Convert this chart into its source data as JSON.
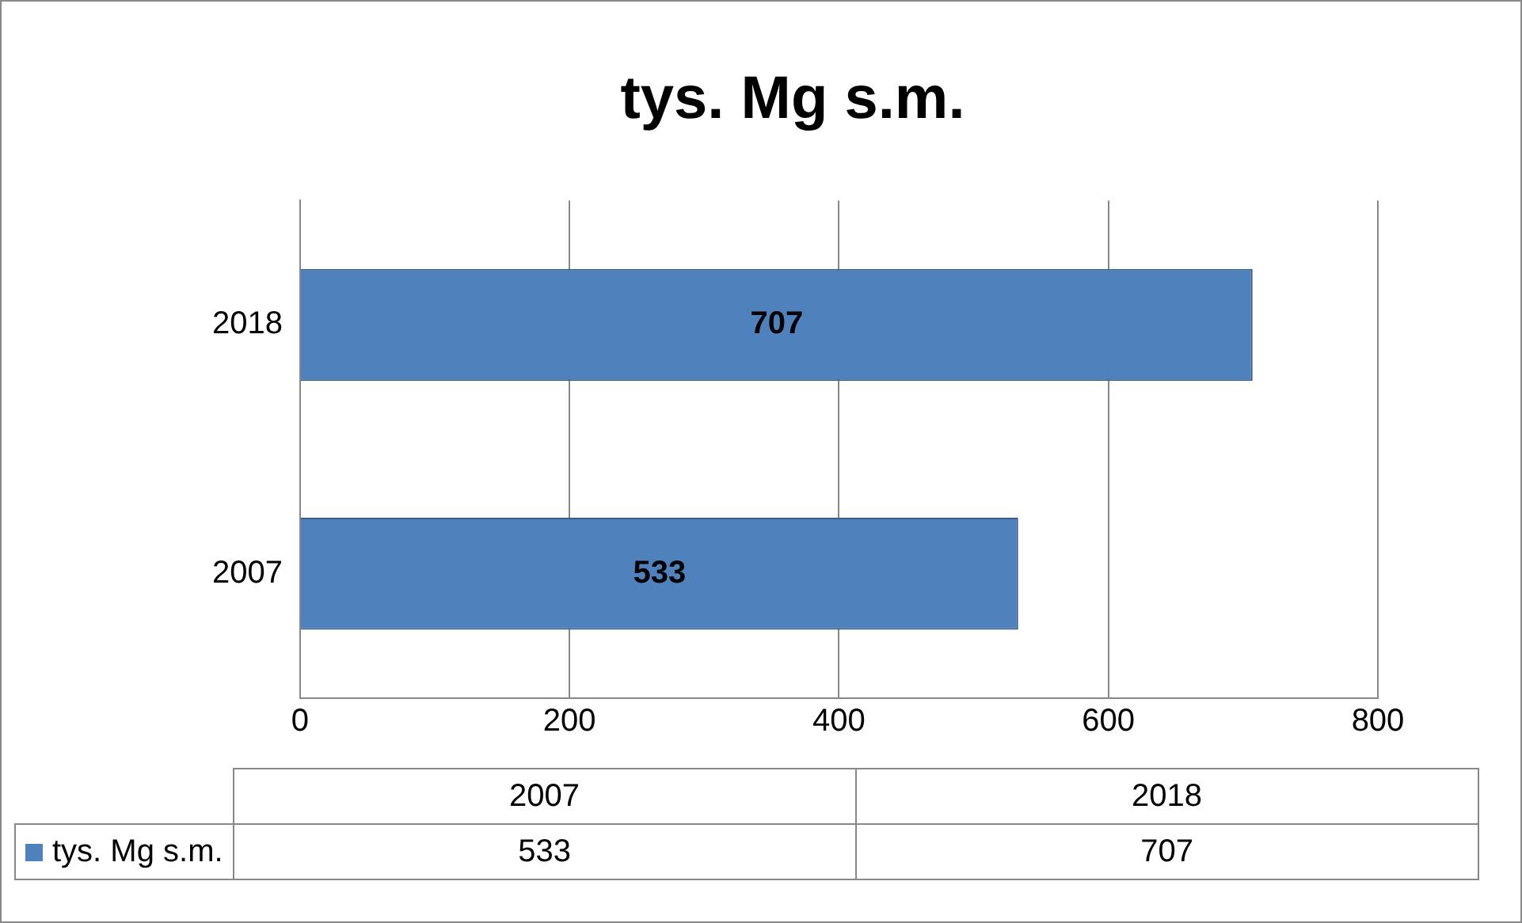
{
  "chart_data": {
    "type": "bar",
    "orientation": "horizontal",
    "title": "tys. Mg s.m.",
    "categories": [
      "2018",
      "2007"
    ],
    "series": [
      {
        "name": "tys. Mg s.m.",
        "color": "#4f81bd",
        "values": [
          707,
          533
        ]
      }
    ],
    "annotations": [
      "533",
      "707"
    ],
    "xlim": [
      0,
      800
    ],
    "xticks": [
      0,
      200,
      400,
      600,
      800
    ],
    "grid": "x",
    "data_labels": true,
    "legend": "bottom"
  }
}
